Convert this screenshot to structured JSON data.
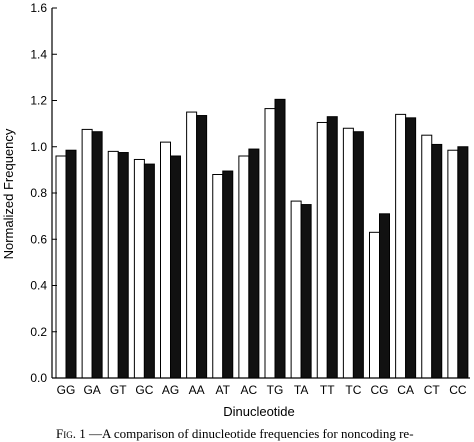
{
  "chart_data": {
    "type": "bar",
    "title": "",
    "xlabel": "Dinucleotide",
    "ylabel": "Normalized Frequency",
    "ylim": [
      0.0,
      1.6
    ],
    "yticks": [
      "0.0",
      "0.2",
      "0.4",
      "0.6",
      "0.8",
      "1.0",
      "1.2",
      "1.4",
      "1.6"
    ],
    "grid": false,
    "legend": "none",
    "categories": [
      "GG",
      "GA",
      "GT",
      "GC",
      "AG",
      "AA",
      "AT",
      "AC",
      "TG",
      "TA",
      "TT",
      "TC",
      "CG",
      "CA",
      "CT",
      "CC"
    ],
    "series": [
      {
        "color": "#ffffff",
        "values": [
          0.96,
          1.075,
          0.98,
          0.945,
          1.02,
          1.15,
          0.88,
          0.96,
          1.165,
          0.765,
          1.105,
          1.08,
          0.63,
          1.14,
          1.05,
          0.985
        ]
      },
      {
        "color": "#111111",
        "values": [
          0.985,
          1.065,
          0.975,
          0.925,
          0.96,
          1.135,
          0.895,
          0.99,
          1.205,
          0.75,
          1.13,
          1.065,
          0.71,
          1.125,
          1.01,
          1.0
        ]
      }
    ]
  },
  "caption": {
    "fig_label": "Fig. 1",
    "text": "—A comparison of dinucleotide frequencies for noncoding re-"
  }
}
